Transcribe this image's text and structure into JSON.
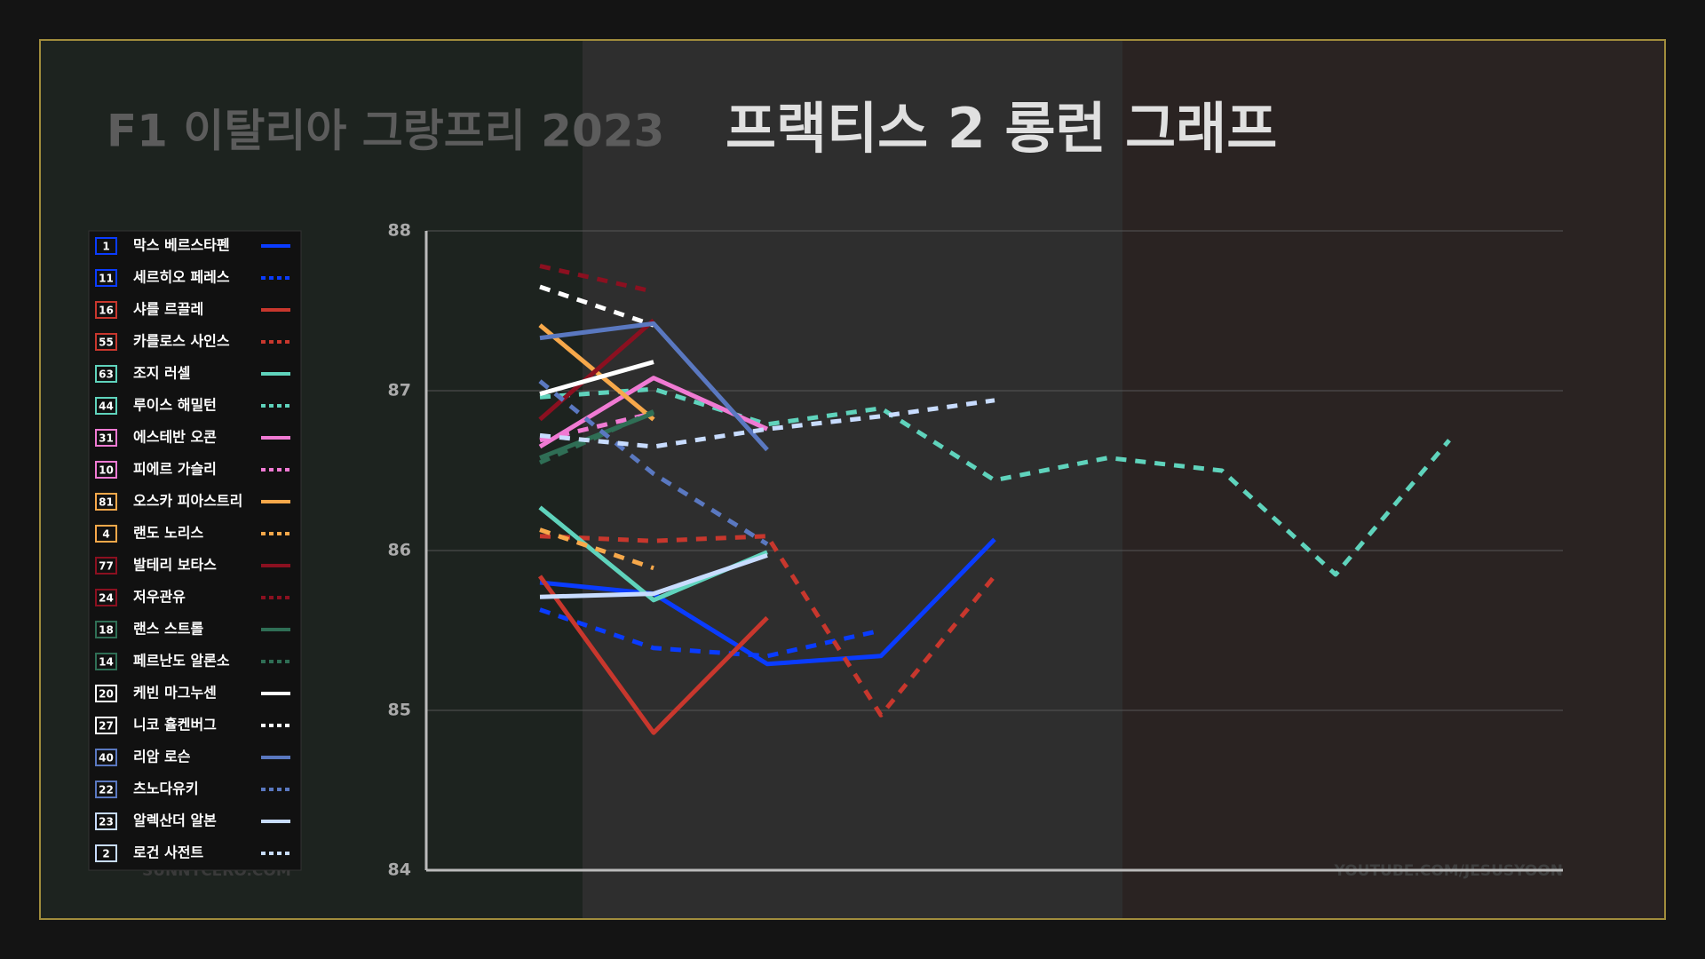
{
  "chart_data": {
    "type": "line",
    "title": "F1 이탈리아 그랑프리 2023",
    "subtitle": "프랙티스 2 롱런 그래프",
    "watermarks": [
      "SUNNYCERO.COM",
      "YOUTUBE.COM/JESUSYOON"
    ],
    "x": [
      1,
      2,
      3,
      4,
      5,
      6,
      7,
      8,
      9
    ],
    "xlim": [
      0,
      10
    ],
    "ylim": [
      84,
      88
    ],
    "yticks": [
      84,
      85,
      86,
      87,
      88
    ],
    "grid": true,
    "legend": "left",
    "series": [
      {
        "name": "막스 베르스타펜",
        "number": "1",
        "color": "#0a3cff",
        "dashed": false,
        "values": [
          85.8,
          85.73,
          85.29,
          85.34,
          86.07,
          null,
          null,
          null,
          null
        ]
      },
      {
        "name": "세르히오 페레스",
        "number": "11",
        "color": "#0a3cff",
        "dashed": true,
        "values": [
          85.63,
          85.39,
          85.34,
          85.5,
          null,
          null,
          null,
          null,
          null
        ]
      },
      {
        "name": "샤를 르끌레",
        "number": "16",
        "color": "#c8372d",
        "dashed": false,
        "values": [
          85.84,
          84.86,
          85.58,
          null,
          null,
          null,
          null,
          null,
          null
        ]
      },
      {
        "name": "카를로스 사인스",
        "number": "55",
        "color": "#c8372d",
        "dashed": true,
        "values": [
          86.09,
          86.06,
          86.09,
          84.97,
          85.84,
          null,
          null,
          null,
          null
        ]
      },
      {
        "name": "조지 러셀",
        "number": "63",
        "color": "#5fd3bc",
        "dashed": false,
        "values": [
          86.27,
          85.69,
          85.99,
          null,
          null,
          null,
          null,
          null,
          null
        ]
      },
      {
        "name": "루이스 해밀턴",
        "number": "44",
        "color": "#5fd3bc",
        "dashed": true,
        "values": [
          86.96,
          87.01,
          86.79,
          86.89,
          86.44,
          86.58,
          86.5,
          85.85,
          86.69
        ]
      },
      {
        "name": "에스테반 오콘",
        "number": "31",
        "color": "#f07ad3",
        "dashed": false,
        "values": [
          86.65,
          87.08,
          86.76,
          null,
          null,
          null,
          null,
          null,
          null
        ]
      },
      {
        "name": "피에르 가슬리",
        "number": "10",
        "color": "#f07ad3",
        "dashed": true,
        "values": [
          86.69,
          86.86,
          null,
          null,
          null,
          null,
          null,
          null,
          null
        ]
      },
      {
        "name": "오스카 피아스트리",
        "number": "81",
        "color": "#f7a84a",
        "dashed": false,
        "values": [
          87.41,
          86.82,
          null,
          null,
          null,
          null,
          null,
          null,
          null
        ]
      },
      {
        "name": "랜도 노리스",
        "number": "4",
        "color": "#f7a84a",
        "dashed": true,
        "values": [
          86.13,
          85.89,
          null,
          null,
          null,
          null,
          null,
          null,
          null
        ]
      },
      {
        "name": "발테리 보타스",
        "number": "77",
        "color": "#8b1020",
        "dashed": false,
        "values": [
          86.82,
          87.44,
          null,
          null,
          null,
          null,
          null,
          null,
          null
        ]
      },
      {
        "name": "저우관유",
        "number": "24",
        "color": "#8b1020",
        "dashed": true,
        "values": [
          87.78,
          87.62,
          null,
          null,
          null,
          null,
          null,
          null,
          null
        ]
      },
      {
        "name": "랜스 스트롤",
        "number": "18",
        "color": "#2f6e55",
        "dashed": false,
        "values": [
          86.58,
          86.86,
          null,
          null,
          null,
          null,
          null,
          null,
          null
        ]
      },
      {
        "name": "페르난도 알론소",
        "number": "14",
        "color": "#2f6e55",
        "dashed": true,
        "values": [
          86.55,
          86.87,
          null,
          null,
          null,
          null,
          null,
          null,
          null
        ]
      },
      {
        "name": "케빈 마그누센",
        "number": "20",
        "color": "#ffffff",
        "dashed": false,
        "values": [
          86.98,
          87.18,
          null,
          null,
          null,
          null,
          null,
          null,
          null
        ]
      },
      {
        "name": "니코 휼켄버그",
        "number": "27",
        "color": "#ffffff",
        "dashed": true,
        "values": [
          87.65,
          87.41,
          null,
          null,
          null,
          null,
          null,
          null,
          null
        ]
      },
      {
        "name": "리암 로슨",
        "number": "40",
        "color": "#5a78c0",
        "dashed": false,
        "values": [
          87.33,
          87.42,
          86.63,
          null,
          null,
          null,
          null,
          null,
          null
        ]
      },
      {
        "name": "츠노다유키",
        "number": "22",
        "color": "#5a78c0",
        "dashed": true,
        "values": [
          87.06,
          86.48,
          86.04,
          null,
          null,
          null,
          null,
          null,
          null
        ]
      },
      {
        "name": "알렉산더 알본",
        "number": "23",
        "color": "#c8dcff",
        "dashed": false,
        "values": [
          85.71,
          85.73,
          85.97,
          null,
          null,
          null,
          null,
          null,
          null
        ]
      },
      {
        "name": "로건 사전트",
        "number": "2",
        "color": "#c8dcff",
        "dashed": true,
        "values": [
          86.72,
          86.65,
          86.76,
          86.84,
          86.94,
          null,
          null,
          null,
          null
        ]
      }
    ]
  }
}
